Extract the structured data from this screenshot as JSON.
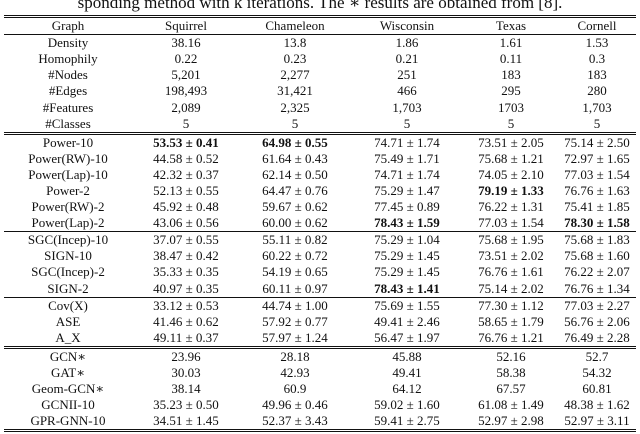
{
  "caption": "sponding method with k iterations. The ∗ results are obtained from [8].",
  "table": {
    "header": [
      "Graph",
      "Squirrel",
      "Chameleon",
      "Wisconsin",
      "Texas",
      "Cornell"
    ],
    "groups": [
      {
        "rows": [
          [
            "Density",
            "38.16",
            "13.8",
            "1.86",
            "1.61",
            "1.53"
          ],
          [
            "Homophily",
            "0.22",
            "0.23",
            "0.21",
            "0.11",
            "0.3"
          ],
          [
            "#Nodes",
            "5,201",
            "2,277",
            "251",
            "183",
            "183"
          ],
          [
            "#Edges",
            "198,493",
            "31,421",
            "466",
            "295",
            "280"
          ],
          [
            "#Features",
            "2,089",
            "2,325",
            "1,703",
            "1703",
            "1,703"
          ],
          [
            "#Classes",
            "5",
            "5",
            "5",
            "5",
            "5"
          ]
        ]
      },
      {
        "rows": [
          [
            "Power-10",
            "53.53 ± 0.41",
            "64.98 ± 0.55",
            "74.71 ± 1.74",
            "73.51 ± 2.05",
            "75.14 ± 2.50"
          ],
          [
            "Power(RW)-10",
            "44.58 ± 0.52",
            "61.64 ± 0.43",
            "75.49 ± 1.71",
            "75.68 ± 1.21",
            "72.97 ± 1.65"
          ],
          [
            "Power(Lap)-10",
            "42.32 ± 0.37",
            "62.14 ± 0.50",
            "74.71 ± 1.74",
            "74.05 ± 2.10",
            "77.03 ± 1.54"
          ],
          [
            "Power-2",
            "52.13 ± 0.55",
            "64.47 ± 0.76",
            "75.29 ± 1.47",
            "79.19 ± 1.33",
            "76.76 ± 1.63"
          ],
          [
            "Power(RW)-2",
            "45.92 ± 0.48",
            "59.67 ± 0.62",
            "77.45 ± 0.89",
            "76.22 ± 1.31",
            "75.41 ± 1.85"
          ],
          [
            "Power(Lap)-2",
            "43.06 ± 0.56",
            "60.00 ± 0.62",
            "78.43 ± 1.59",
            "77.03 ± 1.54",
            "78.30 ± 1.58"
          ]
        ]
      },
      {
        "rows": [
          [
            "SGC(Incep)-10",
            "37.07 ± 0.55",
            "55.11 ± 0.82",
            "75.29 ± 1.04",
            "75.68 ± 1.95",
            "75.68 ± 1.83"
          ],
          [
            "SIGN-10",
            "38.47 ± 0.42",
            "60.22 ± 0.72",
            "75.29 ± 1.45",
            "73.51 ± 2.02",
            "75.68 ± 1.60"
          ],
          [
            "SGC(Incep)-2",
            "35.33 ± 0.35",
            "54.19 ± 0.65",
            "75.29 ± 1.45",
            "76.76 ± 1.61",
            "76.22 ± 2.07"
          ],
          [
            "SIGN-2",
            "40.97 ± 0.35",
            "60.11 ± 0.97",
            "78.43 ± 1.41",
            "75.14 ± 2.02",
            "76.76 ± 1.34"
          ]
        ]
      },
      {
        "rows": [
          [
            "Cov(X)",
            "33.12 ± 0.53",
            "44.74 ± 1.00",
            "75.69 ± 1.55",
            "77.30 ± 1.12",
            "77.03 ± 2.27"
          ],
          [
            "ASE",
            "41.46 ± 0.62",
            "57.92 ± 0.77",
            "49.41 ± 2.46",
            "58.65 ± 1.79",
            "56.76 ± 2.06"
          ],
          [
            "A_X",
            "49.11 ± 0.37",
            "57.97 ± 1.24",
            "56.47 ± 1.97",
            "76.76 ± 1.21",
            "76.49 ± 2.28"
          ]
        ]
      },
      {
        "rows": [
          [
            "GCN∗",
            "23.96",
            "28.18",
            "45.88",
            "52.16",
            "52.7"
          ],
          [
            "GAT∗",
            "30.03",
            "42.93",
            "49.41",
            "58.38",
            "54.32"
          ],
          [
            "Geom-GCN∗",
            "38.14",
            "60.9",
            "64.12",
            "67.57",
            "60.81"
          ],
          [
            "GCNII-10",
            "35.23 ± 0.50",
            "49.96 ± 0.46",
            "59.02 ± 1.60",
            "61.08 ± 1.49",
            "48.38 ± 1.62"
          ],
          [
            "GPR-GNN-10",
            "34.51 ± 1.45",
            "52.37 ± 3.43",
            "59.41 ± 2.75",
            "52.97 ± 2.98",
            "52.97 ± 3.11"
          ]
        ]
      }
    ],
    "bold": [
      [
        1,
        0,
        1
      ],
      [
        1,
        0,
        2
      ],
      [
        1,
        3,
        4
      ],
      [
        1,
        5,
        3
      ],
      [
        1,
        5,
        5
      ],
      [
        2,
        3,
        3
      ]
    ]
  }
}
